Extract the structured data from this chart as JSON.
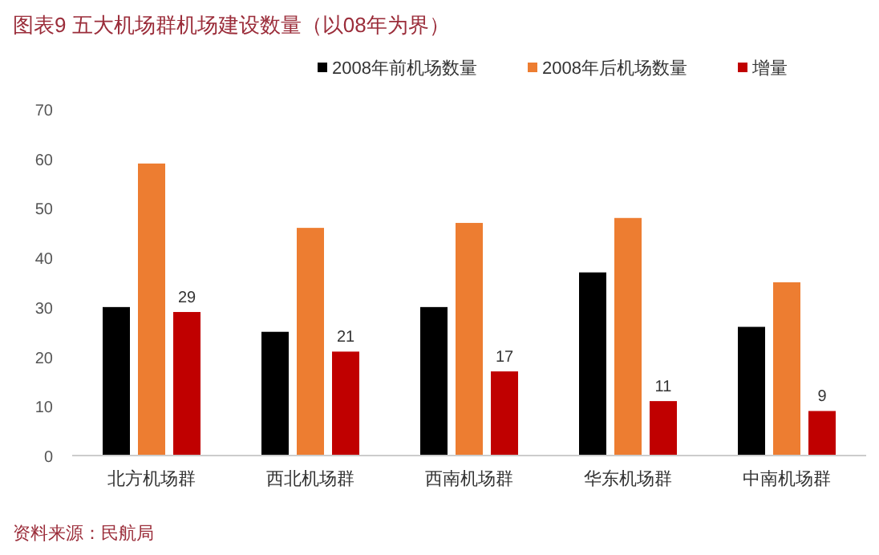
{
  "chart_data": {
    "type": "bar",
    "title": "图表9  五大机场群机场建设数量（以08年为界）",
    "categories": [
      "北方机场群",
      "西北机场群",
      "西南机场群",
      "华东机场群",
      "中南机场群"
    ],
    "series": [
      {
        "name": "2008年前机场数量",
        "color": "#000000",
        "values": [
          30,
          25,
          30,
          37,
          26
        ]
      },
      {
        "name": "2008年后机场数量",
        "color": "#ed7d31",
        "values": [
          59,
          46,
          47,
          48,
          35
        ]
      },
      {
        "name": "增量",
        "color": "#c00000",
        "values": [
          29,
          21,
          17,
          11,
          9
        ],
        "value_labels": [
          "29",
          "21",
          "17",
          "11",
          "9"
        ]
      }
    ],
    "ylim": [
      0,
      70
    ],
    "yticks": [
      0,
      10,
      20,
      30,
      40,
      50,
      60,
      70
    ],
    "legend": "top",
    "annotations": [
      "资料来源：民航局"
    ]
  }
}
